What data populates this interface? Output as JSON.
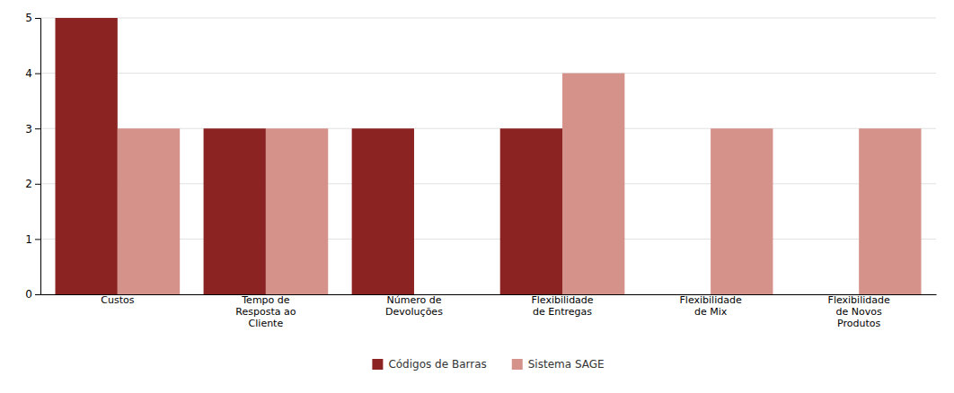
{
  "chart_data": {
    "type": "bar",
    "categories": [
      "Custos",
      "Tempo de\nResposta ao\nCliente",
      "Número de\nDevoluções",
      "Flexibilidade\nde Entregas",
      "Flexibilidade\nde Mix",
      "Flexibilidade\nde Novos\nProdutos"
    ],
    "series": [
      {
        "name": "Códigos de Barras",
        "color": "#8B2323",
        "values": [
          5,
          3,
          3,
          3,
          0,
          0
        ]
      },
      {
        "name": "Sistema SAGE",
        "color": "#D4928A",
        "values": [
          3,
          3,
          0,
          4,
          3,
          3
        ]
      }
    ],
    "ylim": [
      0,
      5
    ],
    "yticks": [
      0,
      1,
      2,
      3,
      4,
      5
    ],
    "grid": true,
    "legend": "bottom"
  }
}
